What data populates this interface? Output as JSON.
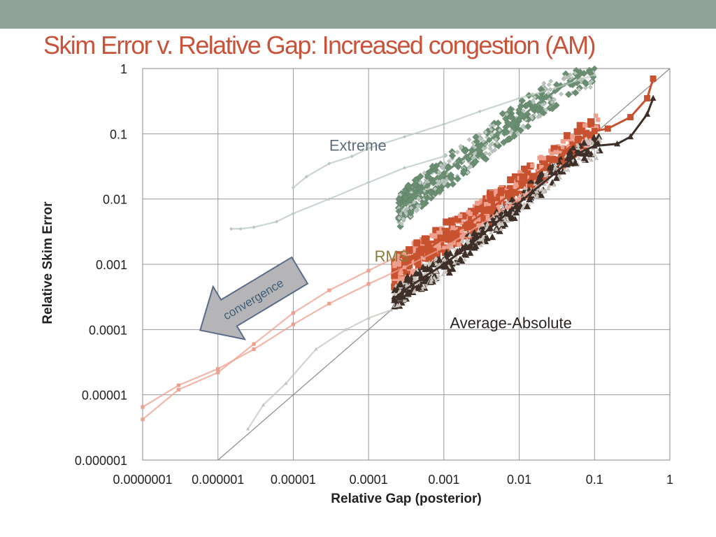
{
  "slide": {
    "title": "Skim Error v. Relative Gap: Increased congestion (AM)"
  },
  "colors": {
    "band": "#90a29a",
    "title": "#c9533a",
    "extreme": "#6a8e72",
    "extreme_light": "#b9c7bf",
    "rms": "#c8522f",
    "rms_light": "#ef9f8e",
    "avg_abs": "#3e2f28",
    "avg_abs_light": "#c9c3bd",
    "arrow": "#b5b5b8"
  },
  "chart_data": {
    "type": "scatter",
    "xlabel": "Relative Gap (posterior)",
    "ylabel": "Relative Skim Error",
    "x_scale": "log",
    "y_scale": "log",
    "xlim": [
      1e-07,
      1
    ],
    "ylim": [
      1e-06,
      1
    ],
    "x_ticks": [
      1e-07,
      1e-06,
      1e-05,
      0.0001,
      0.001,
      0.01,
      0.1,
      1
    ],
    "x_tick_labels": [
      "0.0000001",
      "0.000001",
      "0.00001",
      "0.0001",
      "0.001",
      "0.01",
      "0.1",
      "1"
    ],
    "y_ticks": [
      1,
      0.1,
      0.01,
      0.001,
      0.0001,
      1e-05,
      1e-06
    ],
    "y_tick_labels": [
      "1",
      "0.1",
      "0.01",
      "0.001",
      "0.0001",
      "0.00001",
      "0.000001"
    ],
    "grid": true,
    "reference_line": {
      "x": [
        1e-06,
        1
      ],
      "y": [
        1e-06,
        1
      ]
    },
    "annotations": [
      {
        "text": "Extreme",
        "x": 3e-05,
        "y": 0.055
      },
      {
        "text": "RMS",
        "x": 0.00012,
        "y": 0.0011
      },
      {
        "text": "Average-Absolute",
        "x": 0.0012,
        "y": 0.000105
      },
      {
        "text": "convergence"
      }
    ],
    "series": [
      {
        "group": "Extreme",
        "highlight": true,
        "x": [
          0.00025,
          0.0004,
          0.0006,
          0.001,
          0.002,
          0.004,
          0.008,
          0.015,
          0.03,
          0.06,
          0.1
        ],
        "y": [
          0.0065,
          0.011,
          0.016,
          0.025,
          0.045,
          0.08,
          0.14,
          0.25,
          0.45,
          0.75,
          1.0
        ]
      },
      {
        "group": "Extreme",
        "highlight": false,
        "x": [
          1.5e-06,
          2e-06,
          3e-06,
          6e-06,
          1e-05,
          3e-05,
          0.0001,
          0.0003,
          0.001
        ],
        "y": [
          0.0035,
          0.0035,
          0.0037,
          0.0045,
          0.006,
          0.01,
          0.018,
          0.03,
          0.045
        ]
      },
      {
        "group": "Extreme",
        "highlight": false,
        "x": [
          1e-05,
          1.5e-05,
          3e-05,
          6e-05,
          0.0001,
          0.0003,
          0.001,
          0.003,
          0.01,
          0.03,
          0.1,
          0.3,
          1
        ],
        "y": [
          0.015,
          0.022,
          0.035,
          0.045,
          0.06,
          0.09,
          0.14,
          0.22,
          0.35,
          0.5,
          0.8,
          1.1,
          1.3
        ]
      },
      {
        "group": "RMS",
        "highlight": true,
        "x": [
          0.00022,
          0.0003,
          0.0005,
          0.001,
          0.002,
          0.004,
          0.008,
          0.015,
          0.03,
          0.06,
          0.1,
          0.15,
          0.3,
          0.5,
          0.6
        ],
        "y": [
          0.0007,
          0.001,
          0.0015,
          0.0025,
          0.004,
          0.007,
          0.012,
          0.022,
          0.04,
          0.08,
          0.11,
          0.12,
          0.18,
          0.35,
          0.7
        ]
      },
      {
        "group": "RMS",
        "highlight": false,
        "x": [
          1e-07,
          3e-07,
          1e-06,
          3e-06,
          1e-05,
          3e-05,
          0.0001,
          0.0003,
          0.001,
          0.003,
          0.01,
          0.03
        ],
        "y": [
          6.5e-06,
          1.4e-05,
          2.5e-05,
          5e-05,
          0.00012,
          0.00025,
          0.0005,
          0.0009,
          0.0018,
          0.004,
          0.01,
          0.025
        ]
      },
      {
        "group": "RMS",
        "highlight": false,
        "x": [
          1e-07,
          3e-07,
          1e-06,
          3e-06,
          1e-05,
          3e-05,
          0.0001,
          0.0003
        ],
        "y": [
          4.2e-06,
          1.2e-05,
          2.2e-05,
          6e-05,
          0.00018,
          0.0004,
          0.0008,
          0.0015
        ]
      },
      {
        "group": "Average-Absolute",
        "highlight": true,
        "x": [
          0.00022,
          0.0003,
          0.0005,
          0.001,
          0.002,
          0.004,
          0.008,
          0.015,
          0.03,
          0.06,
          0.1,
          0.2,
          0.3,
          0.5,
          0.6
        ],
        "y": [
          0.0003,
          0.0004,
          0.0006,
          0.001,
          0.0018,
          0.0035,
          0.007,
          0.013,
          0.025,
          0.05,
          0.065,
          0.07,
          0.09,
          0.2,
          0.35
        ]
      },
      {
        "group": "Average-Absolute",
        "highlight": false,
        "x": [
          1.3e-06,
          2.5e-06,
          4e-06,
          8e-06,
          2e-05,
          5e-05,
          0.0001,
          0.0002
        ],
        "y": [
          8e-07,
          3e-06,
          7e-06,
          1.5e-05,
          5e-05,
          0.0001,
          0.00015,
          0.0002
        ]
      }
    ]
  }
}
